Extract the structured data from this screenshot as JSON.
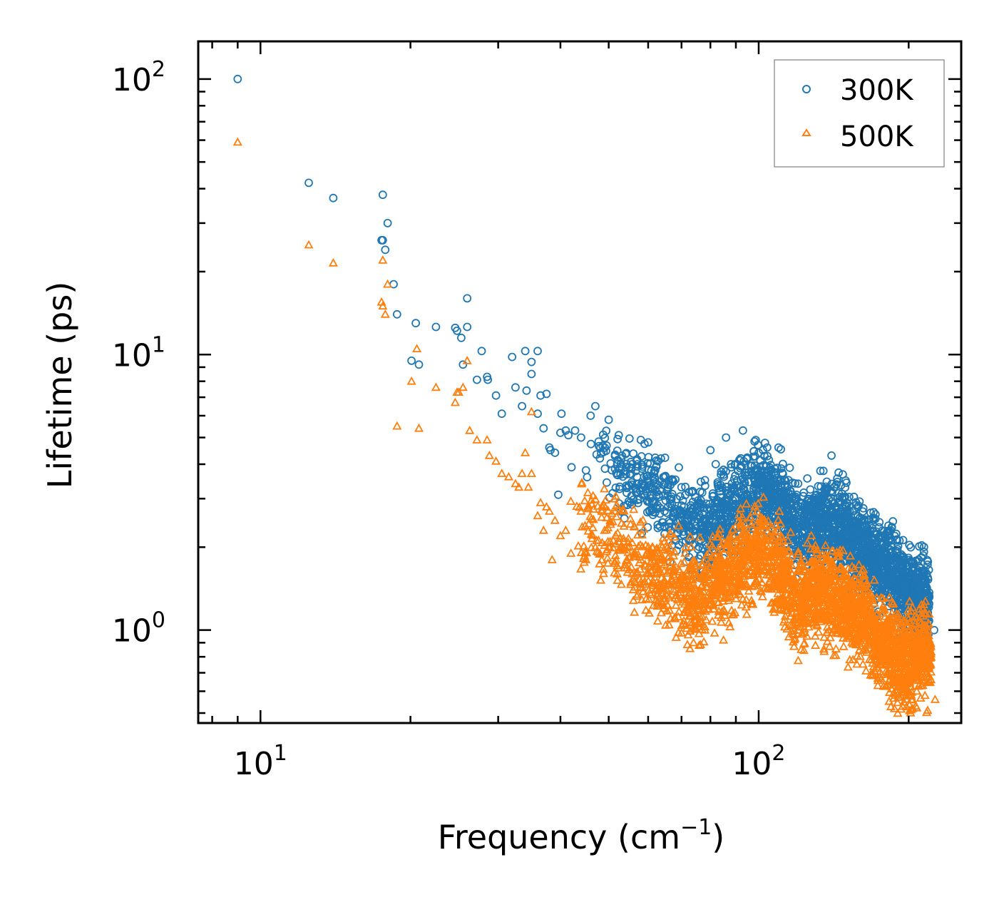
{
  "chart_data": {
    "type": "scatter",
    "xscale": "log",
    "yscale": "log",
    "xlabel": "Frequency (cm",
    "xlabel_exponent": "−1",
    "xlabel_close": ")",
    "ylabel": "Lifetime (ps)",
    "xlim": [
      7.5,
      255
    ],
    "ylim": [
      0.46,
      137
    ],
    "x_ticks": [
      {
        "value": 10,
        "base": "10",
        "exp": "1"
      },
      {
        "value": 100,
        "base": "10",
        "exp": "2"
      }
    ],
    "y_ticks": [
      {
        "value": 1,
        "base": "10",
        "exp": "0"
      },
      {
        "value": 10,
        "base": "10",
        "exp": "1"
      },
      {
        "value": 100,
        "base": "10",
        "exp": "2"
      }
    ],
    "legend_position": "upper right",
    "series": [
      {
        "name": "300K",
        "marker": "circle",
        "color": "#1f77b4",
        "seed": 7,
        "x": [
          9.0,
          12.5,
          14.0,
          17.6,
          17.6,
          17.5,
          17.8,
          18.0,
          18.5,
          18.8,
          20.1,
          20.8,
          20.5,
          22.5,
          24.6,
          25.3,
          24.8,
          26.0,
          26.0,
          25.5,
          27.2,
          27.8,
          28.5,
          28.6,
          29.7,
          30.5,
          32.0,
          32.5,
          33.5,
          34.2,
          34.0,
          35.0,
          35.0,
          36.0,
          36.0,
          36.5,
          37.0,
          37.5,
          38.0,
          38.2,
          39.0,
          39.6,
          40.0,
          40.2,
          41.0,
          41.5,
          42.1,
          42.8,
          44.0,
          45.0,
          46.0,
          47.0,
          48.0,
          50.0,
          52.0,
          53.0,
          55.0,
          57.0,
          58.0,
          60.0,
          62.0,
          63.0,
          65.0,
          66.0,
          70.0,
          73.0,
          74.0,
          76.0,
          78.0,
          80.0,
          82.0,
          86.0,
          88.0,
          90.0,
          92.0,
          93.0,
          95.0,
          98.0,
          100.0,
          102.0,
          104.0,
          105.0,
          106.0,
          108.0,
          110.0,
          115.0,
          120.0,
          125.0,
          130.0,
          135.0,
          140.0,
          145.0,
          150.0,
          155.0,
          160.0,
          165.0,
          170.0,
          175.0,
          180.0,
          190.0,
          200.0,
          210.0,
          213.0,
          218.0,
          225.0
        ],
        "y": [
          100,
          42,
          37,
          38,
          26,
          26,
          24,
          30,
          18,
          14,
          9.5,
          9.2,
          13,
          12.6,
          12.5,
          11.5,
          12.2,
          16,
          12.6,
          9.2,
          8.1,
          10.3,
          8.3,
          8.1,
          7.1,
          6.1,
          9.8,
          7.6,
          6.5,
          7.4,
          10.3,
          8.5,
          9.4,
          10.3,
          6.1,
          7.1,
          5.4,
          7.2,
          4.6,
          4.5,
          4.4,
          3.1,
          5.2,
          6.1,
          5.3,
          5.1,
          3.9,
          5.3,
          5.0,
          3.8,
          6.0,
          6.5,
          4.2,
          5.8,
          4.0,
          4.2,
          3.9,
          3.6,
          4.9,
          4.8,
          3.8,
          3.1,
          3.6,
          3.5,
          3.3,
          2.7,
          2.2,
          2.9,
          3.5,
          4.5,
          4.0,
          5.0,
          4.0,
          3.0,
          4.2,
          5.3,
          4.2,
          3.8,
          4.4,
          4.5,
          4.6,
          3.4,
          3.0,
          2.8,
          2.5,
          2.6,
          2.4,
          2.8,
          2.9,
          2.6,
          4.3,
          2.5,
          2.8,
          2.4,
          2.2,
          2.1,
          2.0,
          1.9,
          1.8,
          1.6,
          1.4,
          1.7,
          1.3,
          1.1,
          1.0
        ],
        "trend": [
          [
            8.6,
            100
          ],
          [
            12,
            44
          ],
          [
            18,
            26
          ],
          [
            25,
            12
          ],
          [
            35,
            7
          ],
          [
            45,
            5
          ],
          [
            55,
            3.6
          ],
          [
            70,
            2.6
          ],
          [
            80,
            2.3
          ],
          [
            90,
            2.9
          ],
          [
            100,
            3.3
          ],
          [
            110,
            3.0
          ],
          [
            120,
            2.3
          ],
          [
            140,
            2.5
          ],
          [
            160,
            2.0
          ],
          [
            180,
            1.7
          ],
          [
            200,
            1.35
          ],
          [
            220,
            1.25
          ]
        ],
        "dense_range": [
          44,
          220
        ],
        "dense_count": 2400,
        "spread": 0.42
      },
      {
        "name": "500K",
        "marker": "triangle",
        "color": "#ff7f0e",
        "seed": 19,
        "x": [
          9.0,
          12.5,
          14.0,
          17.6,
          17.6,
          17.5,
          17.8,
          18.0,
          18.8,
          20.1,
          20.6,
          20.8,
          22.5,
          24.6,
          25.0,
          24.8,
          26.0,
          25.5,
          26.3,
          27.2,
          28.5,
          28.8,
          29.7,
          30.5,
          31.5,
          32.5,
          33.0,
          33.5,
          34.0,
          34.5,
          35.0,
          35.0,
          36.0,
          36.5,
          37.0,
          37.5,
          38.0,
          38.5,
          39.0,
          40.0,
          41.0,
          42.0,
          44.0,
          45.0,
          47.0,
          48.0,
          50.0,
          52.0,
          54.0,
          56.0,
          58.0,
          60.0,
          62.0,
          65.0,
          68.0,
          72.0,
          74.0,
          78.0,
          80.0,
          85.0,
          90.0,
          95.0,
          100.0,
          105.0,
          110.0,
          115.0,
          120.0,
          125.0,
          130.0,
          140.0,
          150.0,
          160.0,
          170.0,
          175.0,
          180.0,
          190.0,
          200.0,
          210.0,
          220.0,
          226.0
        ],
        "y": [
          59,
          25,
          21.5,
          22,
          15,
          15.5,
          14,
          18,
          5.5,
          8,
          10.5,
          5.4,
          7.6,
          6.7,
          7.3,
          7.3,
          9.5,
          7.6,
          5.3,
          4.9,
          4.9,
          4.3,
          4.1,
          3.7,
          3.6,
          3.4,
          3.3,
          3.7,
          4.4,
          3.3,
          6.2,
          3.7,
          2.6,
          2.9,
          2.3,
          2.8,
          2.7,
          1.8,
          2.5,
          2.2,
          2.3,
          1.9,
          2.7,
          1.8,
          2.0,
          1.9,
          2.0,
          1.6,
          2.0,
          1.4,
          1.8,
          1.6,
          1.9,
          1.3,
          1.1,
          1.3,
          0.9,
          1.0,
          1.3,
          0.92,
          1.7,
          1.9,
          1.95,
          2.2,
          2.7,
          1.5,
          1.2,
          0.95,
          0.88,
          1.3,
          1.0,
          1.6,
          0.9,
          0.85,
          0.75,
          0.62,
          0.6,
          0.75,
          0.68,
          0.56
        ],
        "trend": [
          [
            8.6,
            59
          ],
          [
            12,
            25
          ],
          [
            18,
            16
          ],
          [
            25,
            7
          ],
          [
            35,
            3.7
          ],
          [
            45,
            2.5
          ],
          [
            55,
            1.9
          ],
          [
            65,
            1.5
          ],
          [
            75,
            1.3
          ],
          [
            85,
            1.6
          ],
          [
            95,
            1.85
          ],
          [
            102,
            1.95
          ],
          [
            110,
            1.6
          ],
          [
            120,
            1.25
          ],
          [
            130,
            1.4
          ],
          [
            140,
            1.35
          ],
          [
            160,
            1.15
          ],
          [
            180,
            0.85
          ],
          [
            200,
            0.78
          ],
          [
            220,
            0.8
          ]
        ],
        "dense_range": [
          40,
          222
        ],
        "dense_count": 2600,
        "spread": 0.45
      }
    ]
  }
}
